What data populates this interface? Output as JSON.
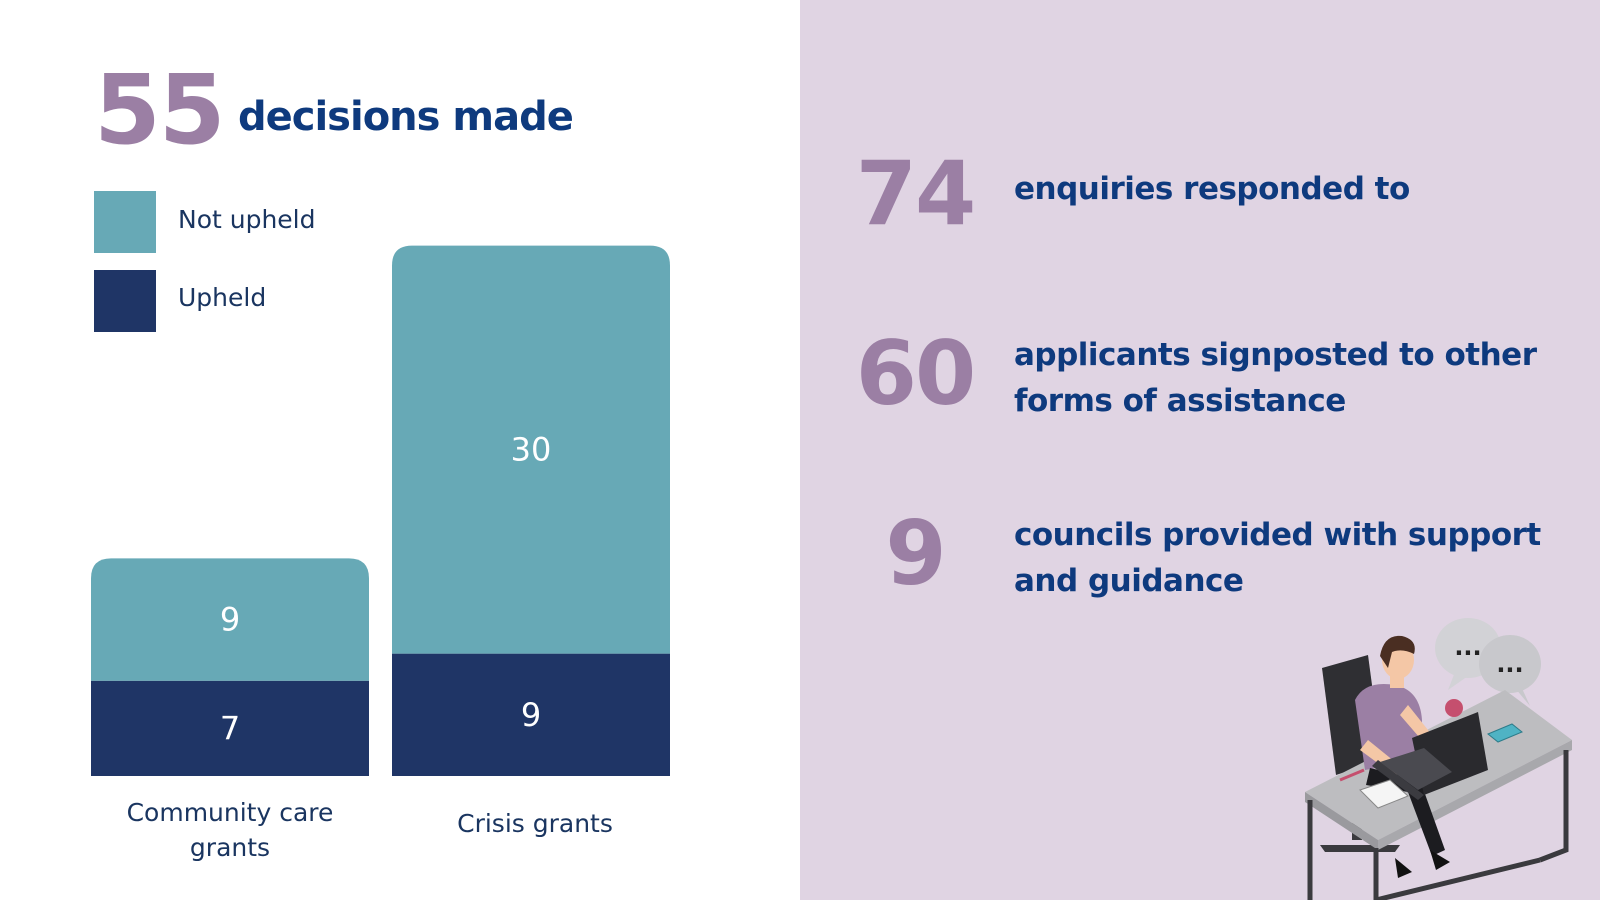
{
  "headline": {
    "number": "55",
    "label": "decisions made"
  },
  "legend": [
    {
      "label": "Not upheld",
      "color": "#67a9b6"
    },
    {
      "label": "Upheld",
      "color": "#1f3566"
    }
  ],
  "chart_data": {
    "type": "bar",
    "stacked": true,
    "categories": [
      "Community care grants",
      "Crisis grants"
    ],
    "series": [
      {
        "name": "Upheld",
        "values": [
          7,
          9
        ],
        "color": "#1f3566"
      },
      {
        "name": "Not upheld",
        "values": [
          9,
          30
        ],
        "color": "#67a9b6"
      }
    ],
    "category_labels": [
      [
        "Community care",
        "grants"
      ],
      [
        "Crisis grants"
      ]
    ],
    "ylim": [
      0,
      39
    ]
  },
  "stats": [
    {
      "number": "74",
      "lines": [
        "enquiries responded to"
      ]
    },
    {
      "number": "60",
      "lines": [
        "applicants signposted to other",
        "forms of assistance"
      ]
    },
    {
      "number": "9",
      "lines": [
        "councils provided with support",
        "and guidance"
      ]
    }
  ]
}
